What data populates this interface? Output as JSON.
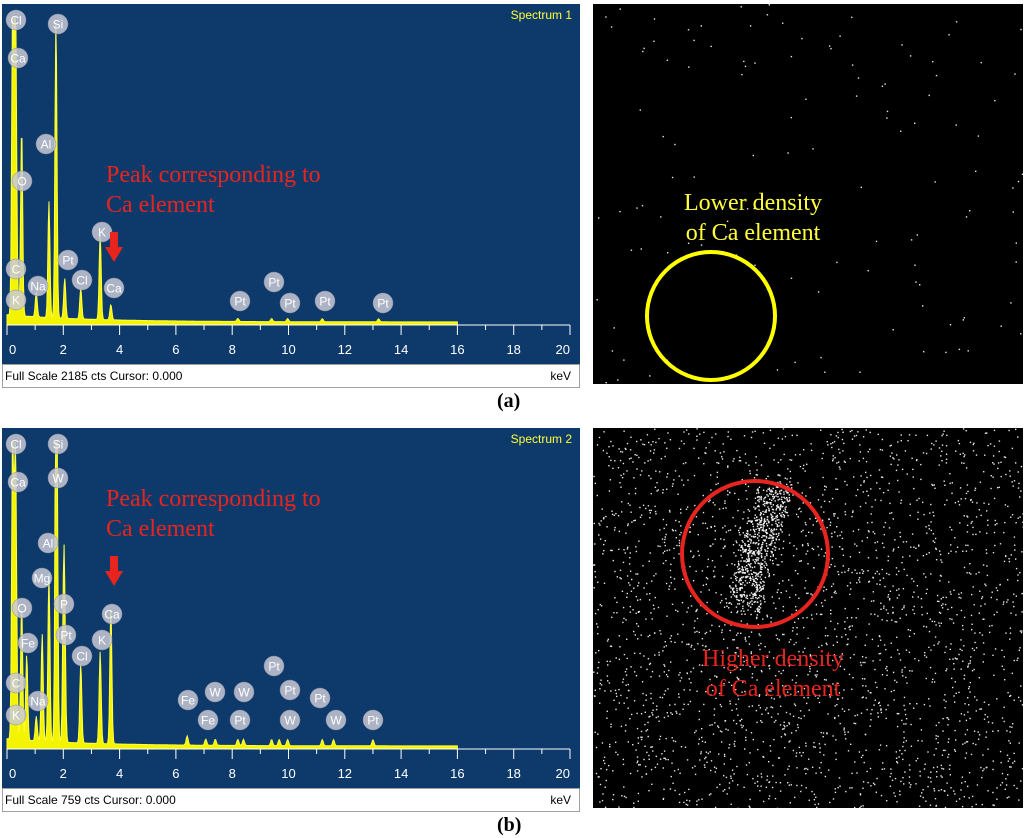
{
  "panels": [
    {
      "caption": "(a)",
      "spectrum": {
        "name": "Spectrum 1",
        "footer": "Full Scale 2185 cts Cursor: 0.000",
        "unit": "keV",
        "annotation_line1": "Peak corresponding to",
        "annotation_line2": "Ca element"
      },
      "map": {
        "label_line1": "Lower density",
        "label_line2": "of Ca element",
        "circle_color": "#ffff00",
        "label_color": "#ffff3c",
        "dot_density": "low"
      }
    },
    {
      "caption": "(b)",
      "spectrum": {
        "name": "Spectrum 2",
        "footer": "Full Scale 759 cts Cursor: 0.000",
        "unit": "keV",
        "annotation_line1": "Peak corresponding to",
        "annotation_line2": "Ca element"
      },
      "map": {
        "label_line1": "Higher density",
        "label_line2": "of Ca element",
        "circle_color": "#e8241e",
        "label_color": "#e8241e",
        "dot_density": "high"
      }
    }
  ],
  "chart_data": [
    {
      "type": "line",
      "title": "Spectrum 1",
      "xlabel": "keV",
      "xlim": [
        0,
        20
      ],
      "x_ticks": [
        "0",
        "2",
        "4",
        "6",
        "8",
        "10",
        "12",
        "14",
        "16",
        "18",
        "20"
      ],
      "full_scale_cts": 2185,
      "peaks": [
        {
          "element": "Cl",
          "x": 0.2,
          "y": 1.0
        },
        {
          "element": "Ca",
          "x": 0.3,
          "y": 0.8
        },
        {
          "element": "C",
          "x": 0.28,
          "y": 0.3
        },
        {
          "element": "K",
          "x": 0.35,
          "y": 0.12
        },
        {
          "element": "O",
          "x": 0.52,
          "y": 0.62
        },
        {
          "element": "Na",
          "x": 1.04,
          "y": 0.08
        },
        {
          "element": "Al",
          "x": 1.49,
          "y": 0.38
        },
        {
          "element": "Si",
          "x": 1.74,
          "y": 0.98
        },
        {
          "element": "Pt",
          "x": 2.05,
          "y": 0.13
        },
        {
          "element": "Cl",
          "x": 2.62,
          "y": 0.1
        },
        {
          "element": "K",
          "x": 3.31,
          "y": 0.28
        },
        {
          "element": "Ca",
          "x": 3.69,
          "y": 0.05
        },
        {
          "element": "Pt",
          "x": 8.2,
          "y": 0.01
        },
        {
          "element": "Pt",
          "x": 9.4,
          "y": 0.01
        },
        {
          "element": "Pt",
          "x": 9.97,
          "y": 0.01
        },
        {
          "element": "Pt",
          "x": 11.2,
          "y": 0.01
        },
        {
          "element": "Pt",
          "x": 13.2,
          "y": 0.01
        }
      ]
    },
    {
      "type": "line",
      "title": "Spectrum 2",
      "xlabel": "keV",
      "xlim": [
        0,
        20
      ],
      "x_ticks": [
        "0",
        "2",
        "4",
        "6",
        "8",
        "10",
        "12",
        "14",
        "16",
        "18",
        "20"
      ],
      "full_scale_cts": 759,
      "peaks": [
        {
          "element": "Cl",
          "x": 0.2,
          "y": 1.0
        },
        {
          "element": "Ca",
          "x": 0.3,
          "y": 0.8
        },
        {
          "element": "C",
          "x": 0.28,
          "y": 0.2
        },
        {
          "element": "K",
          "x": 0.35,
          "y": 0.1
        },
        {
          "element": "O",
          "x": 0.52,
          "y": 0.45
        },
        {
          "element": "Fe",
          "x": 0.7,
          "y": 0.28
        },
        {
          "element": "Na",
          "x": 1.04,
          "y": 0.08
        },
        {
          "element": "Mg",
          "x": 1.25,
          "y": 0.35
        },
        {
          "element": "Al",
          "x": 1.49,
          "y": 0.55
        },
        {
          "element": "Si",
          "x": 1.74,
          "y": 0.98
        },
        {
          "element": "W",
          "x": 1.77,
          "y": 0.85
        },
        {
          "element": "P",
          "x": 2.01,
          "y": 0.45
        },
        {
          "element": "Pt",
          "x": 2.05,
          "y": 0.3
        },
        {
          "element": "Cl",
          "x": 2.62,
          "y": 0.26
        },
        {
          "element": "K",
          "x": 3.31,
          "y": 0.3
        },
        {
          "element": "Ca",
          "x": 3.69,
          "y": 0.45
        },
        {
          "element": "Fe",
          "x": 6.4,
          "y": 0.03
        },
        {
          "element": "Fe",
          "x": 7.06,
          "y": 0.02
        },
        {
          "element": "W",
          "x": 7.4,
          "y": 0.02
        },
        {
          "element": "Pt",
          "x": 8.2,
          "y": 0.02
        },
        {
          "element": "W",
          "x": 8.4,
          "y": 0.02
        },
        {
          "element": "Pt",
          "x": 9.4,
          "y": 0.02
        },
        {
          "element": "W",
          "x": 9.67,
          "y": 0.02
        },
        {
          "element": "Pt",
          "x": 9.97,
          "y": 0.02
        },
        {
          "element": "Pt",
          "x": 11.2,
          "y": 0.02
        },
        {
          "element": "W",
          "x": 11.6,
          "y": 0.02
        },
        {
          "element": "Pt",
          "x": 13.0,
          "y": 0.02
        }
      ]
    }
  ]
}
